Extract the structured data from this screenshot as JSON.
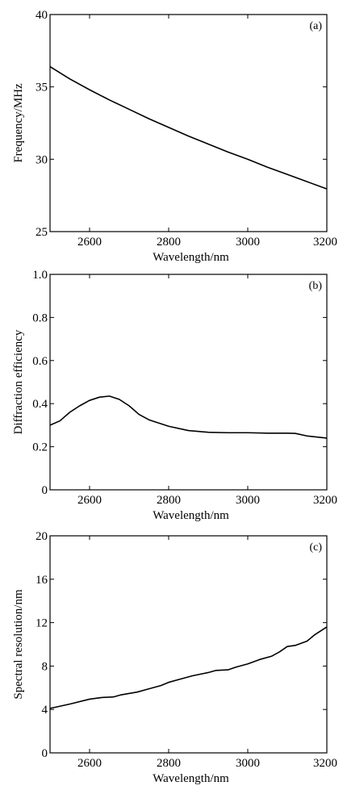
{
  "chart_data": [
    {
      "type": "line",
      "panel_label": "(a)",
      "xlabel": "Wavelength/nm",
      "ylabel": "Frequency/MHz",
      "xlim": [
        2500,
        3200
      ],
      "ylim": [
        25,
        40
      ],
      "xticks": [
        2600,
        2800,
        3000,
        3200
      ],
      "yticks": [
        25,
        30,
        35,
        40
      ],
      "grid": false,
      "series": [
        {
          "x": [
            2500,
            2550,
            2600,
            2650,
            2700,
            2750,
            2800,
            2850,
            2900,
            2950,
            3000,
            3050,
            3100,
            3150,
            3200
          ],
          "y": [
            36.4,
            35.55,
            34.8,
            34.1,
            33.45,
            32.8,
            32.2,
            31.6,
            31.05,
            30.5,
            30.0,
            29.45,
            28.95,
            28.45,
            27.95
          ]
        }
      ]
    },
    {
      "type": "line",
      "panel_label": "(b)",
      "xlabel": "Wavelength/nm",
      "ylabel": "Diffraction efficiency",
      "xlim": [
        2500,
        3200
      ],
      "ylim": [
        0,
        1.0
      ],
      "xticks": [
        2600,
        2800,
        3000,
        3200
      ],
      "yticks": [
        "0",
        "0.2",
        "0.4",
        "0.6",
        "0.8",
        "1.0"
      ],
      "grid": false,
      "series": [
        {
          "x": [
            2500,
            2525,
            2550,
            2575,
            2600,
            2625,
            2650,
            2675,
            2700,
            2725,
            2750,
            2800,
            2850,
            2900,
            2950,
            3000,
            3050,
            3100,
            3120,
            3150,
            3200
          ],
          "y": [
            0.3,
            0.32,
            0.36,
            0.39,
            0.415,
            0.43,
            0.435,
            0.42,
            0.39,
            0.35,
            0.325,
            0.295,
            0.275,
            0.267,
            0.265,
            0.265,
            0.263,
            0.263,
            0.262,
            0.25,
            0.24
          ]
        }
      ]
    },
    {
      "type": "line",
      "panel_label": "(c)",
      "xlabel": "Wavelength/nm",
      "ylabel": "Spectral resolution/nm",
      "xlim": [
        2500,
        3200
      ],
      "ylim": [
        0,
        20
      ],
      "xticks": [
        2600,
        2800,
        3000,
        3200
      ],
      "yticks": [
        0,
        4,
        8,
        12,
        16,
        20
      ],
      "grid": false,
      "series": [
        {
          "x": [
            2500,
            2550,
            2600,
            2630,
            2660,
            2680,
            2720,
            2750,
            2780,
            2800,
            2830,
            2860,
            2900,
            2920,
            2950,
            2970,
            3000,
            3030,
            3060,
            3080,
            3100,
            3120,
            3150,
            3170,
            3200
          ],
          "y": [
            4.1,
            4.5,
            4.95,
            5.1,
            5.15,
            5.35,
            5.6,
            5.9,
            6.2,
            6.5,
            6.8,
            7.1,
            7.4,
            7.6,
            7.65,
            7.9,
            8.2,
            8.6,
            8.9,
            9.3,
            9.8,
            9.9,
            10.3,
            10.9,
            11.6
          ]
        }
      ]
    }
  ]
}
